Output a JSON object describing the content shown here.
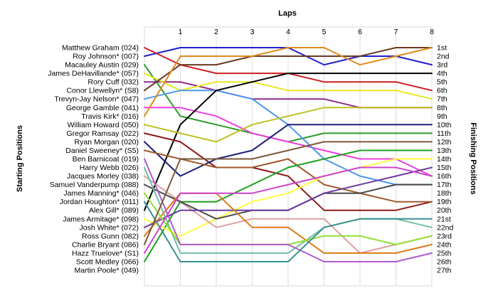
{
  "chart_data": {
    "type": "line",
    "title": "",
    "xlabel": "Laps",
    "ylabel_left": "Starting Positions",
    "ylabel_right": "Finishing Positions",
    "x": [
      0,
      1,
      2,
      3,
      4,
      5,
      6,
      7,
      8
    ],
    "x_tick_labels": [
      "1",
      "2",
      "3",
      "4",
      "5",
      "6",
      "7",
      "8"
    ],
    "ylim": [
      1,
      27
    ],
    "y_inverted": true,
    "grid": "vertical",
    "starting_labels": [
      "Matthew Graham (024)",
      "Roy Johnson* (007)",
      "Macauley Austin (029)",
      "James DeHavillande* (057)",
      "Rory Cuff (032)",
      "Conor Llewellyn* (S8)",
      "Trevyn-Jay Nelson* (047)",
      "George Gamble (041)",
      "Travis Kirk* (016)",
      "William Howard (050)",
      "Gregor Ramsay (022)",
      "Ryan Morgan (020)",
      "Daniel Sweeney* (S5)",
      "Ben Barnicoat (019)",
      "Harry Webb (026)",
      "Jacques Morley (038)",
      "Samuel Vanderpump (088)",
      "James Manning* (046)",
      "Jordan Houghton* (011)",
      "Alex Gill* (089)",
      "James Armitage* (098)",
      "Josh White* (072)",
      "Ross Gunn (082)",
      "Charlie Bryant (086)",
      "Hazz Truelove* (S1)",
      "Scott Medley (066)",
      "Martin Poole* (049)"
    ],
    "finishing_labels": [
      "1st",
      "2nd",
      "3rd",
      "4th",
      "5th",
      "6th",
      "7th",
      "8th",
      "9th",
      "10th",
      "11th",
      "12th",
      "13th",
      "14th",
      "15th",
      "16th",
      "17th",
      "18th",
      "19th",
      "20th",
      "21st",
      "22nd",
      "23rd",
      "24th",
      "25th",
      "26th",
      "27th"
    ],
    "series": [
      {
        "color": "#2020cc",
        "values": [
          2,
          1,
          1,
          1,
          1,
          3,
          2,
          2,
          3
        ]
      },
      {
        "color": "#cc2020",
        "values": [
          1,
          3,
          4,
          4,
          4,
          5,
          5,
          5,
          6
        ]
      },
      {
        "color": "#2b9c2b",
        "values": [
          3,
          9,
          10,
          11,
          12,
          11,
          11,
          11,
          11
        ]
      },
      {
        "color": "#8e2a8e",
        "values": [
          5,
          5,
          6,
          7,
          7,
          7,
          8,
          8,
          8
        ]
      },
      {
        "color": "#e8e820",
        "values": [
          4,
          6,
          5,
          5,
          6,
          6,
          6,
          6,
          7
        ]
      },
      {
        "color": "#ee3fe0",
        "values": [
          8,
          8,
          9,
          11,
          12,
          13,
          14,
          14,
          16
        ]
      },
      {
        "color": "#4c98ee",
        "values": [
          7,
          6,
          6,
          7,
          10,
          14,
          16,
          17,
          17
        ]
      },
      {
        "color": "#6b3a24",
        "values": [
          6,
          3,
          3,
          2,
          2,
          2,
          2,
          1,
          1
        ]
      },
      {
        "color": "#e08a1e",
        "values": [
          9,
          2,
          2,
          2,
          1,
          1,
          3,
          2,
          1
        ]
      },
      {
        "color": "#000000",
        "values": [
          20,
          10,
          6,
          5,
          4,
          4,
          4,
          4,
          4
        ]
      },
      {
        "color": "#8b1a1a",
        "values": [
          11,
          12,
          15,
          15,
          16,
          20,
          20,
          20,
          19
        ]
      },
      {
        "color": "#1e1e7a",
        "values": [
          12,
          16,
          14,
          13,
          10,
          10,
          10,
          10,
          10
        ]
      },
      {
        "color": "#c0c020",
        "values": [
          10,
          11,
          12,
          10,
          9,
          8,
          8,
          8,
          8
        ]
      },
      {
        "color": "#a05a2c",
        "values": [
          13,
          14,
          15,
          15,
          14,
          17,
          18,
          19,
          19
        ]
      },
      {
        "color": "#20a020",
        "values": [
          26,
          19,
          19,
          17,
          15,
          14,
          13,
          13,
          13
        ]
      },
      {
        "color": "#ffff40",
        "values": [
          21,
          23,
          21,
          19,
          18,
          16,
          15,
          14,
          14
        ]
      },
      {
        "color": "#dda0a0",
        "values": [
          16,
          19,
          22,
          21,
          21,
          21,
          25,
          24,
          23
        ]
      },
      {
        "color": "#4a4a4a",
        "values": [
          17,
          19,
          21,
          20,
          20,
          18,
          18,
          17,
          17
        ]
      },
      {
        "color": "#6a3fa0",
        "values": [
          22,
          20,
          20,
          20,
          20,
          18,
          17,
          16,
          15
        ]
      },
      {
        "color": "#dd7a1a",
        "values": [
          23,
          18,
          18,
          22,
          22,
          25,
          25,
          25,
          24
        ]
      },
      {
        "color": "#70c0a0",
        "values": [
          15,
          25,
          25,
          25,
          25,
          22,
          21,
          21,
          22
        ]
      },
      {
        "color": "#90e030",
        "values": [
          18,
          24,
          24,
          24,
          24,
          23,
          23,
          24,
          23
        ]
      },
      {
        "color": "#b05ad0",
        "values": [
          14,
          24,
          24,
          24,
          24,
          26,
          26,
          26,
          25
        ]
      },
      {
        "color": "#3a9090",
        "values": [
          19,
          26,
          26,
          26,
          26,
          22,
          21,
          21,
          21
        ]
      },
      {
        "color": "#cc44cc",
        "values": [
          25,
          18,
          18,
          18,
          17,
          16,
          15,
          15,
          16
        ]
      },
      {
        "color": "#7a5a3a",
        "values": [
          24,
          14,
          14,
          14,
          13,
          12,
          12,
          12,
          12
        ]
      }
    ]
  }
}
